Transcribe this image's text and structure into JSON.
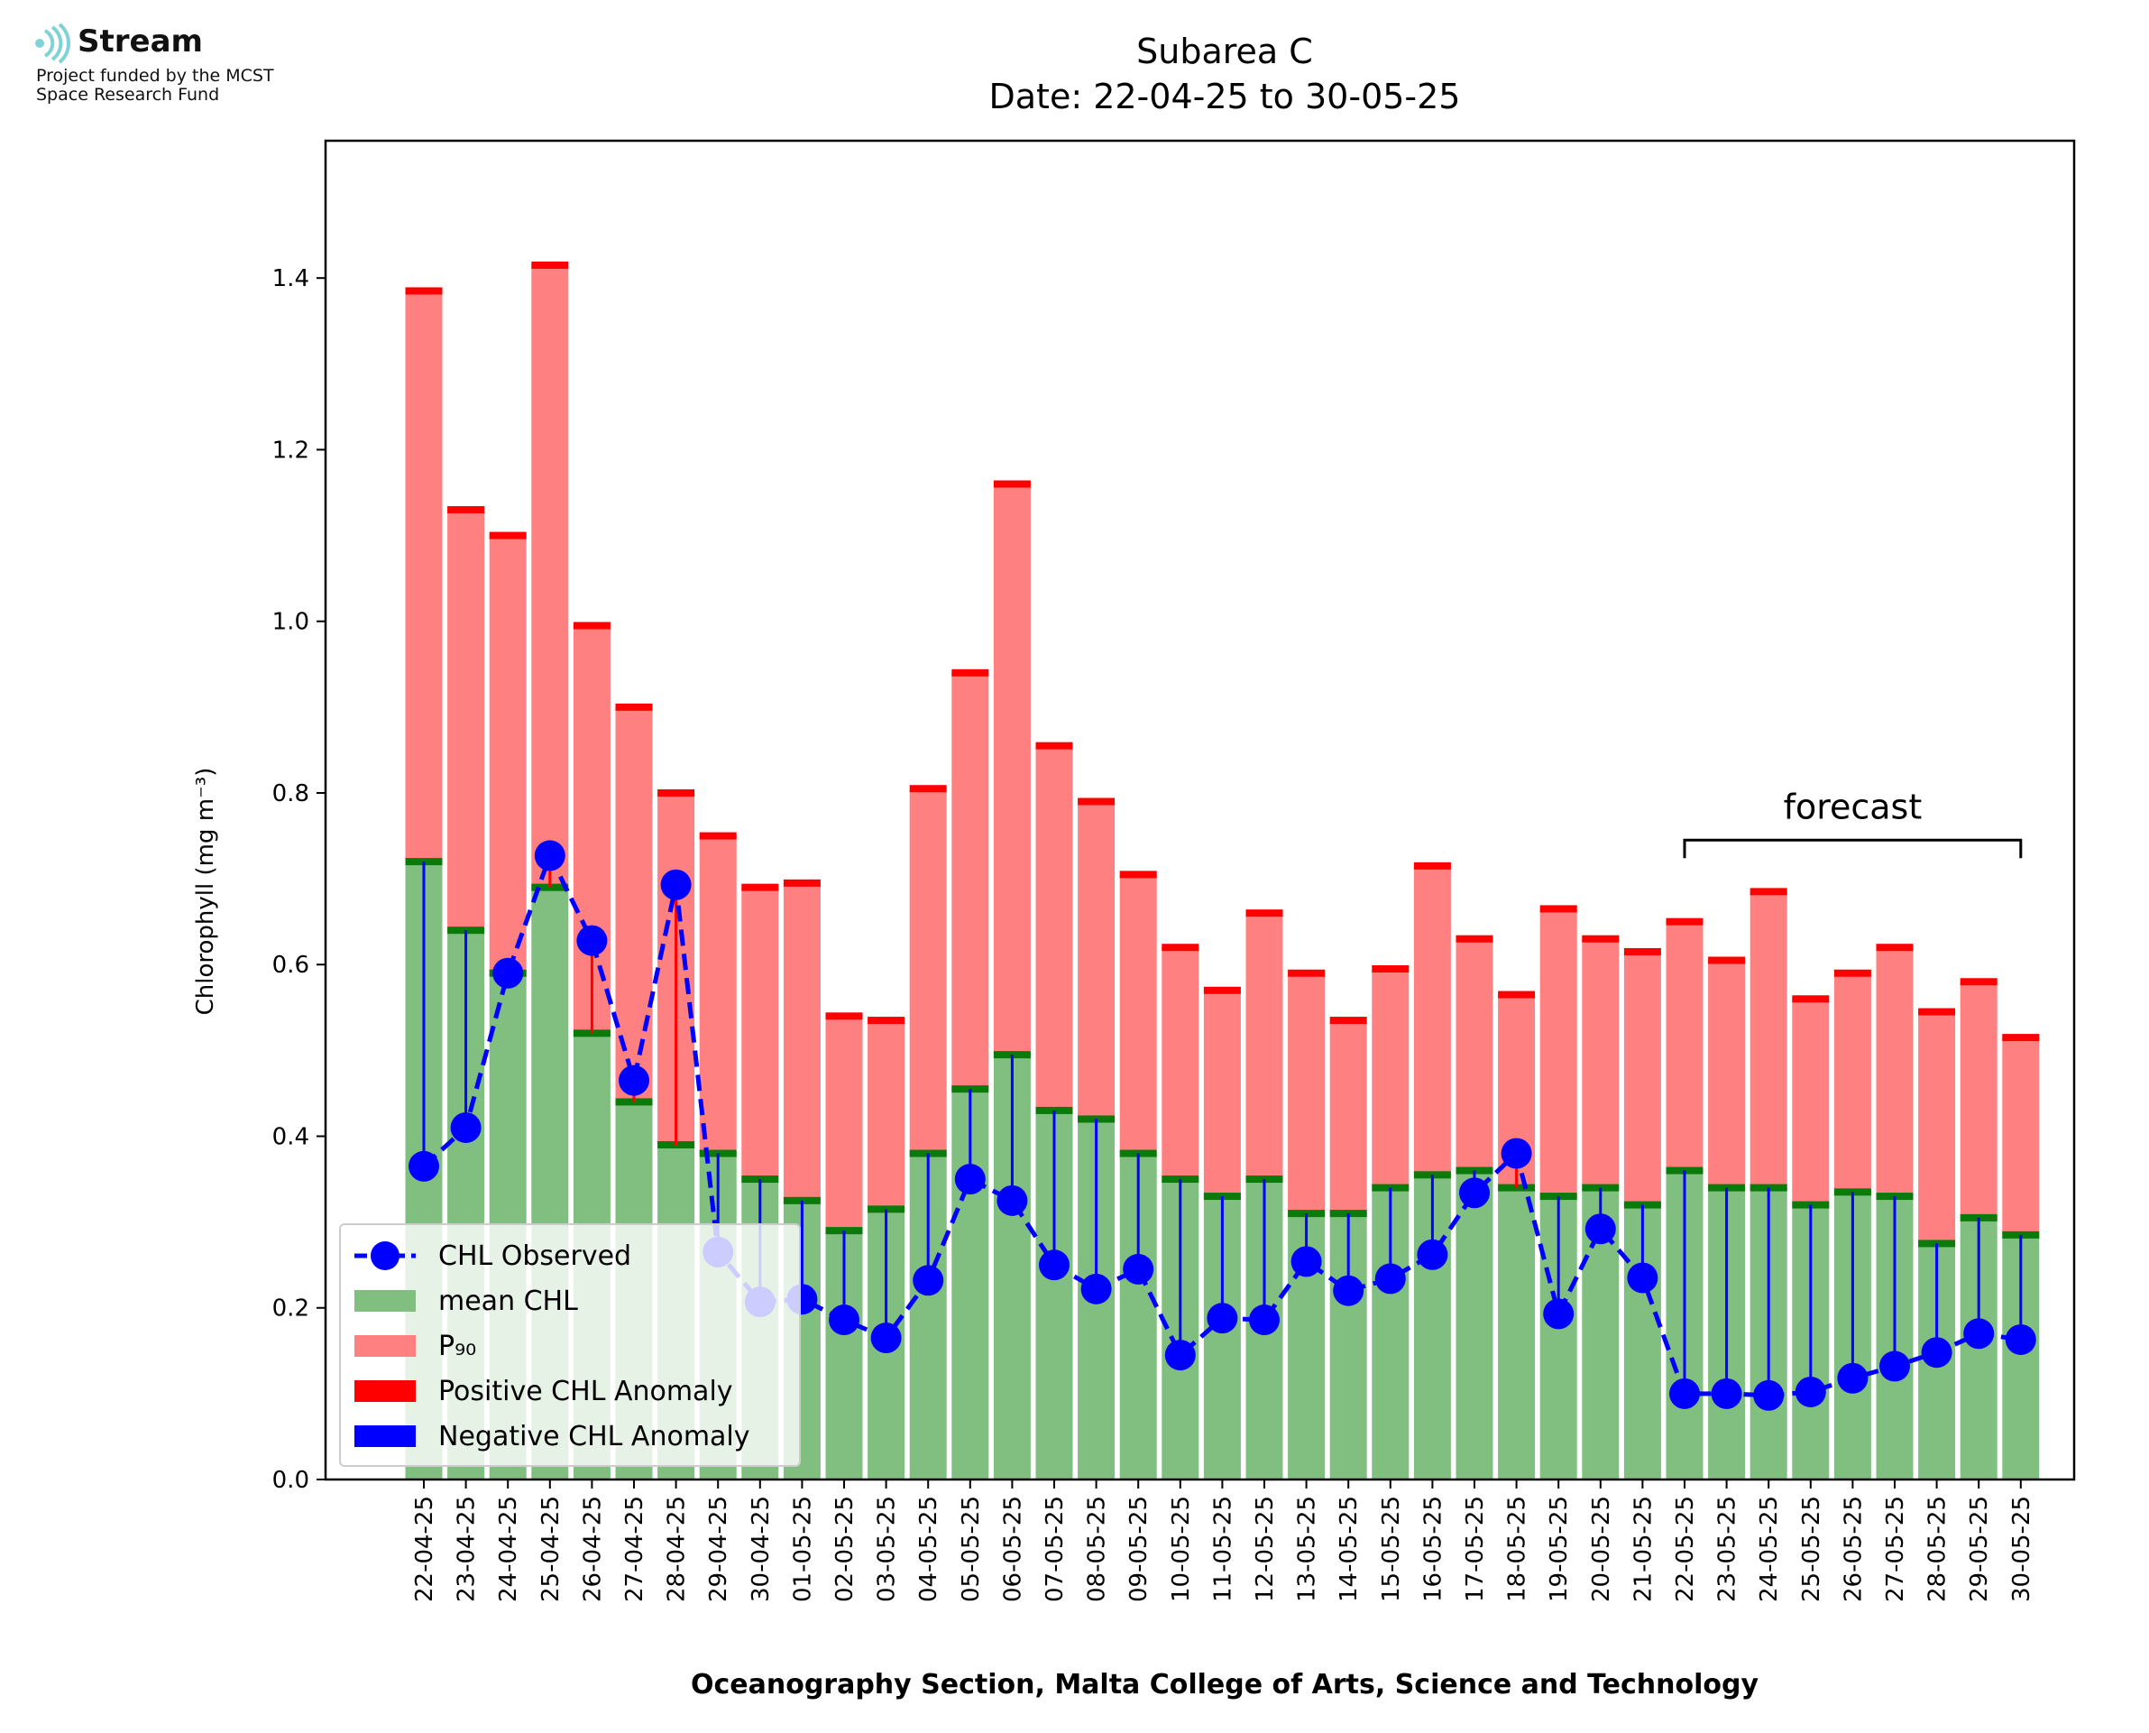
{
  "logo": {
    "brand": "Stream",
    "funding_line1": "Project funded by the MCST",
    "funding_line2": "Space Research Fund"
  },
  "chart_data": {
    "type": "bar",
    "title": "Subarea C",
    "subtitle": "Date: 22-04-25 to 30-05-25",
    "xlabel": "Oceanography Section, Malta College of Arts, Science and Technology",
    "ylabel": "Chlorophyll (mg m⁻³)",
    "ylim": [
      0,
      1.56
    ],
    "yticks": [
      "0.0",
      "0.2",
      "0.4",
      "0.6",
      "0.8",
      "1.0",
      "1.2",
      "1.4"
    ],
    "grid": false,
    "legend_position": "lower-left",
    "annotation": "forecast",
    "forecast_range": [
      "22-05-25",
      "30-05-25"
    ],
    "categories": [
      "22-04-25",
      "23-04-25",
      "24-04-25",
      "25-04-25",
      "26-04-25",
      "27-04-25",
      "28-04-25",
      "29-04-25",
      "30-04-25",
      "01-05-25",
      "02-05-25",
      "03-05-25",
      "04-05-25",
      "05-05-25",
      "06-05-25",
      "07-05-25",
      "08-05-25",
      "09-05-25",
      "10-05-25",
      "11-05-25",
      "12-05-25",
      "13-05-25",
      "14-05-25",
      "15-05-25",
      "16-05-25",
      "17-05-25",
      "18-05-25",
      "19-05-25",
      "20-05-25",
      "21-05-25",
      "22-05-25",
      "23-05-25",
      "24-05-25",
      "25-05-25",
      "26-05-25",
      "27-05-25",
      "28-05-25",
      "29-05-25",
      "30-05-25"
    ],
    "series": [
      {
        "name": "mean CHL",
        "color": "#80bf80",
        "values": [
          0.72,
          0.64,
          0.59,
          0.69,
          0.52,
          0.44,
          0.39,
          0.38,
          0.35,
          0.325,
          0.29,
          0.315,
          0.38,
          0.455,
          0.495,
          0.43,
          0.42,
          0.38,
          0.35,
          0.33,
          0.35,
          0.31,
          0.31,
          0.34,
          0.355,
          0.36,
          0.34,
          0.33,
          0.34,
          0.32,
          0.36,
          0.34,
          0.34,
          0.32,
          0.335,
          0.33,
          0.275,
          0.305,
          0.285
        ]
      },
      {
        "name": "P₉₀",
        "color": "#ff8080",
        "values": [
          1.385,
          1.13,
          1.1,
          1.415,
          0.995,
          0.9,
          0.8,
          0.75,
          0.69,
          0.695,
          0.54,
          0.535,
          0.805,
          0.94,
          1.16,
          0.855,
          0.79,
          0.705,
          0.62,
          0.57,
          0.66,
          0.59,
          0.535,
          0.595,
          0.715,
          0.63,
          0.565,
          0.665,
          0.63,
          0.615,
          0.65,
          0.605,
          0.685,
          0.56,
          0.59,
          0.62,
          0.545,
          0.58,
          0.515
        ]
      },
      {
        "name": "CHL Observed",
        "color": "#0000ff",
        "values": [
          0.365,
          0.41,
          0.59,
          0.727,
          0.628,
          0.465,
          0.693,
          0.265,
          0.207,
          0.21,
          0.186,
          0.165,
          0.232,
          0.35,
          0.325,
          0.25,
          0.222,
          0.245,
          0.145,
          0.188,
          0.186,
          0.254,
          0.22,
          0.234,
          0.262,
          0.334,
          0.38,
          0.193,
          0.292,
          0.235,
          0.1,
          0.1,
          0.098,
          0.102,
          0.118,
          0.132,
          0.148,
          0.17,
          0.163
        ]
      }
    ],
    "legend": [
      "CHL Observed",
      "mean CHL",
      "P₉₀",
      "Positive CHL Anomaly",
      "Negative CHL Anomaly"
    ],
    "colors": {
      "observed": "#0000ff",
      "mean": "#80bf80",
      "mean_cap": "#0a7a0a",
      "p90": "#ff8080",
      "p90_cap": "#ff0000",
      "positive_anomaly": "#ff0000",
      "negative_anomaly": "#0000ff"
    }
  }
}
